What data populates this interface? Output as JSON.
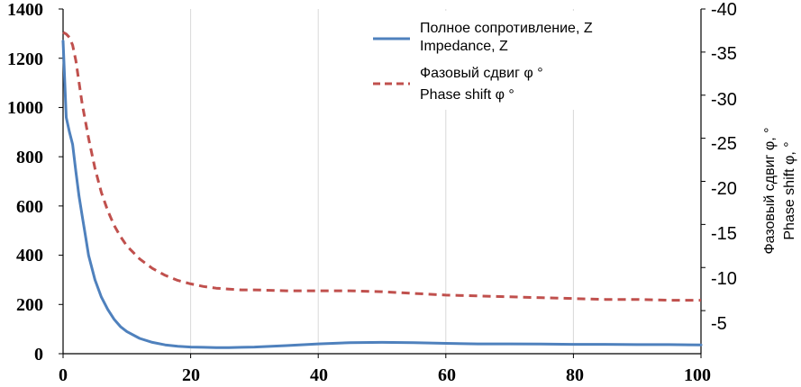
{
  "chart_data": {
    "type": "line",
    "x_axis": {
      "min": 0,
      "max": 100,
      "ticks": [
        "0",
        "20",
        "40",
        "60",
        "80",
        "100"
      ]
    },
    "y_left": {
      "min": 0,
      "max": 1400,
      "ticks": [
        "0",
        "200",
        "400",
        "600",
        "800",
        "1000",
        "1200",
        "1400"
      ]
    },
    "y_right": {
      "min": 0,
      "max": -40,
      "reversed": true,
      "ticks": [
        "-5",
        "-10",
        "-15",
        "-20",
        "-25",
        "-30",
        "-35",
        "-40"
      ]
    },
    "y_right_label_lines": [
      "Фазовый сдвиг φ, °",
      "Phase shift φ, °"
    ],
    "grid": "vertical",
    "legend_position": "top-right",
    "series": [
      {
        "name_lines": [
          "Полное сопротивление, Z",
          "Impedance, Z"
        ],
        "axis": "left",
        "color": "#4f81bd",
        "style": "solid",
        "x": [
          0,
          0.5,
          1,
          1.5,
          2,
          2.5,
          3,
          3.5,
          4,
          5,
          6,
          7,
          8,
          9,
          10,
          12,
          14,
          16,
          18,
          20,
          22,
          24,
          26,
          28,
          30,
          35,
          40,
          45,
          50,
          55,
          60,
          65,
          70,
          75,
          80,
          85,
          90,
          95,
          100
        ],
        "y": [
          1270,
          960,
          900,
          850,
          740,
          640,
          560,
          480,
          400,
          300,
          230,
          180,
          140,
          110,
          90,
          62,
          46,
          36,
          30,
          27,
          26,
          25,
          25,
          26,
          27,
          33,
          40,
          45,
          46,
          45,
          42,
          40,
          40,
          39,
          38,
          38,
          37,
          37,
          36
        ]
      },
      {
        "name_lines": [
          "Фазовый сдвиг φ °",
          "Phase shift φ °"
        ],
        "axis": "right",
        "color": "#c0504d",
        "style": "dashed",
        "x": [
          0,
          0.5,
          1,
          1.5,
          2,
          2.5,
          3,
          4,
          5,
          6,
          7,
          8,
          9,
          10,
          12,
          14,
          16,
          18,
          20,
          22,
          24,
          26,
          28,
          30,
          35,
          40,
          45,
          50,
          55,
          60,
          65,
          70,
          75,
          80,
          85,
          90,
          95,
          100
        ],
        "y": [
          -37.3,
          -37.1,
          -36.7,
          -35.8,
          -34.0,
          -31.5,
          -29.0,
          -25.0,
          -21.5,
          -18.7,
          -16.6,
          -14.9,
          -13.6,
          -12.5,
          -11.0,
          -9.9,
          -9.1,
          -8.5,
          -8.1,
          -7.8,
          -7.6,
          -7.5,
          -7.4,
          -7.4,
          -7.3,
          -7.3,
          -7.3,
          -7.2,
          -7.0,
          -6.8,
          -6.7,
          -6.6,
          -6.5,
          -6.4,
          -6.3,
          -6.3,
          -6.2,
          -6.2
        ]
      }
    ]
  }
}
